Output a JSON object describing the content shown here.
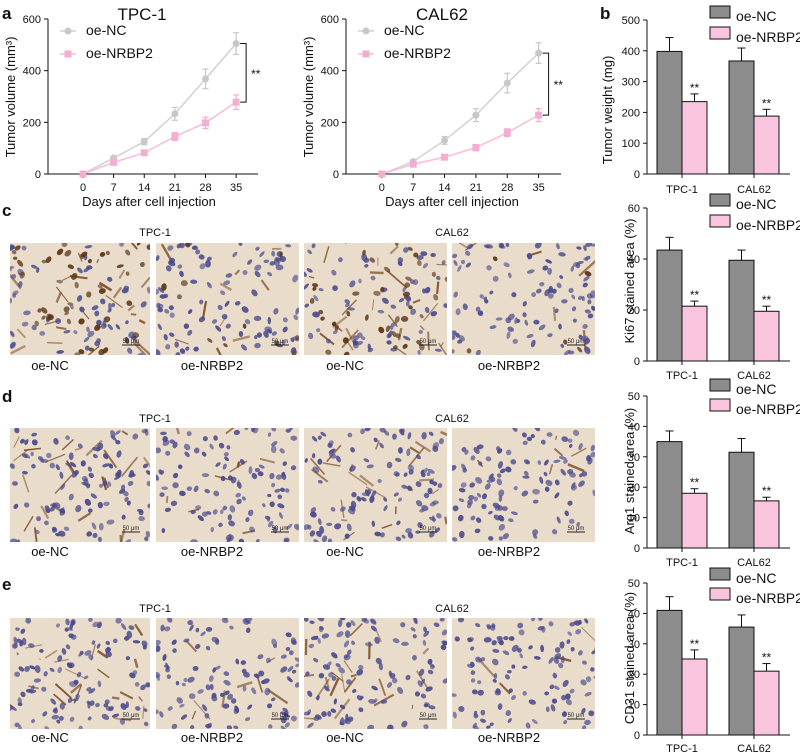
{
  "colors": {
    "oe_nc": "#d4d4d4",
    "oe_nc_marker": "#c8c8c8",
    "oe_nrbp2": "#f7bfdc",
    "oe_nrbp2_marker": "#f4aed2",
    "bar_nc": "#8c8c8c",
    "bar_nrbp2": "#f9c4de",
    "stain_bg": "#e9dccb",
    "stain_nuclei": "#4a4a8c",
    "stain_brown": "#7a4a22"
  },
  "panels": {
    "a": "a",
    "b": "b",
    "c": "c",
    "d": "d",
    "e": "e"
  },
  "significance": "**",
  "chart_data": [
    {
      "id": "a1",
      "type": "line",
      "title": "TPC-1",
      "xlabel": "Days after cell injection",
      "ylabel": "Tumor volume (mm³)",
      "x": [
        0,
        7,
        14,
        21,
        28,
        35
      ],
      "xticks": [
        "0",
        "7",
        "14",
        "21",
        "28",
        "35"
      ],
      "yticks": [
        "0",
        "200",
        "400",
        "600"
      ],
      "ylim": [
        0,
        600
      ],
      "legend": [
        "oe-NC",
        "oe-NRBP2"
      ],
      "series": [
        {
          "name": "oe-NC",
          "values": [
            0,
            62,
            125,
            233,
            368,
            505
          ],
          "errors": [
            0,
            8,
            12,
            25,
            38,
            42
          ]
        },
        {
          "name": "oe-NRBP2",
          "values": [
            0,
            45,
            82,
            145,
            198,
            278
          ],
          "errors": [
            0,
            6,
            10,
            15,
            22,
            28
          ]
        }
      ],
      "annotation": "**"
    },
    {
      "id": "a2",
      "type": "line",
      "title": "CAL62",
      "xlabel": "Days after cell injection",
      "ylabel": "Tumor volume (mm³)",
      "x": [
        0,
        7,
        14,
        21,
        28,
        35
      ],
      "xticks": [
        "0",
        "7",
        "14",
        "21",
        "28",
        "35"
      ],
      "yticks": [
        "0",
        "200",
        "400",
        "600"
      ],
      "ylim": [
        0,
        600
      ],
      "legend": [
        "oe-NC",
        "oe-NRBP2"
      ],
      "series": [
        {
          "name": "oe-NC",
          "values": [
            0,
            48,
            130,
            228,
            352,
            468
          ],
          "errors": [
            0,
            8,
            15,
            25,
            38,
            40
          ]
        },
        {
          "name": "oe-NRBP2",
          "values": [
            0,
            38,
            65,
            102,
            160,
            228
          ],
          "errors": [
            0,
            6,
            8,
            12,
            15,
            25
          ]
        }
      ],
      "annotation": "**"
    },
    {
      "id": "b",
      "type": "bar",
      "ylabel": "Tumor weight (mg)",
      "categories": [
        "TPC-1",
        "CAL62"
      ],
      "yticks": [
        "0",
        "100",
        "200",
        "300",
        "400",
        "500"
      ],
      "ylim": [
        0,
        500
      ],
      "legend": [
        "oe-NC",
        "oe-NRBP2"
      ],
      "series": [
        {
          "name": "oe-NC",
          "values": [
            398,
            367
          ],
          "errors": [
            45,
            42
          ]
        },
        {
          "name": "oe-NRBP2",
          "values": [
            235,
            188
          ],
          "errors": [
            25,
            22
          ]
        }
      ],
      "annotation": "**"
    },
    {
      "id": "c",
      "type": "bar",
      "ylabel": "Ki67 stained area (%)",
      "categories": [
        "TPC-1",
        "CAL62"
      ],
      "yticks": [
        "0",
        "20",
        "40",
        "60"
      ],
      "ylim": [
        0,
        60
      ],
      "legend": [
        "oe-NC",
        "oe-NRBP2"
      ],
      "series": [
        {
          "name": "oe-NC",
          "values": [
            43.5,
            39.5
          ],
          "errors": [
            5,
            4
          ]
        },
        {
          "name": "oe-NRBP2",
          "values": [
            21.5,
            19.5
          ],
          "errors": [
            2,
            2
          ]
        }
      ],
      "annotation": "**"
    },
    {
      "id": "d",
      "type": "bar",
      "ylabel": "Arg1 stained area (%)",
      "categories": [
        "TPC-1",
        "CAL62"
      ],
      "yticks": [
        "0",
        "10",
        "20",
        "30",
        "40",
        "50"
      ],
      "ylim": [
        0,
        50
      ],
      "legend": [
        "oe-NC",
        "oe-NRBP2"
      ],
      "series": [
        {
          "name": "oe-NC",
          "values": [
            35,
            31.5
          ],
          "errors": [
            3.5,
            4.5
          ]
        },
        {
          "name": "oe-NRBP2",
          "values": [
            18,
            15.5
          ],
          "errors": [
            1.5,
            1.2
          ]
        }
      ],
      "annotation": "**"
    },
    {
      "id": "e",
      "type": "bar",
      "ylabel": "CD31 stained area (%)",
      "categories": [
        "TPC-1",
        "CAL62"
      ],
      "yticks": [
        "0",
        "10",
        "20",
        "30",
        "40",
        "50"
      ],
      "ylim": [
        0,
        50
      ],
      "legend": [
        "oe-NC",
        "oe-NRBP2"
      ],
      "series": [
        {
          "name": "oe-NC",
          "values": [
            41,
            35.5
          ],
          "errors": [
            4.5,
            4
          ]
        },
        {
          "name": "oe-NRBP2",
          "values": [
            25,
            21
          ],
          "errors": [
            3,
            2.5
          ]
        }
      ],
      "annotation": "**"
    }
  ],
  "micrographs": {
    "rows": [
      {
        "id": "c",
        "groups": [
          "TPC-1",
          "CAL62"
        ],
        "captions": [
          "oe-NC",
          "oe-NRBP2",
          "oe-NC",
          "oe-NRBP2"
        ],
        "scale": "50 μm",
        "stain": [
          0.7,
          0.25,
          0.65,
          0.15
        ]
      },
      {
        "id": "d",
        "groups": [
          "TPC-1",
          "CAL62"
        ],
        "captions": [
          "oe-NC",
          "oe-NRBP2",
          "oe-NC",
          "oe-NRBP2"
        ],
        "scale": "50 μm",
        "stain": [
          0.6,
          0.25,
          0.55,
          0.15
        ]
      },
      {
        "id": "e",
        "groups": [
          "TPC-1",
          "CAL62"
        ],
        "captions": [
          "oe-NC",
          "oe-NRBP2",
          "oe-NC",
          "oe-NRBP2"
        ],
        "scale": "50 μm",
        "stain": [
          0.55,
          0.2,
          0.5,
          0.15
        ]
      }
    ]
  }
}
